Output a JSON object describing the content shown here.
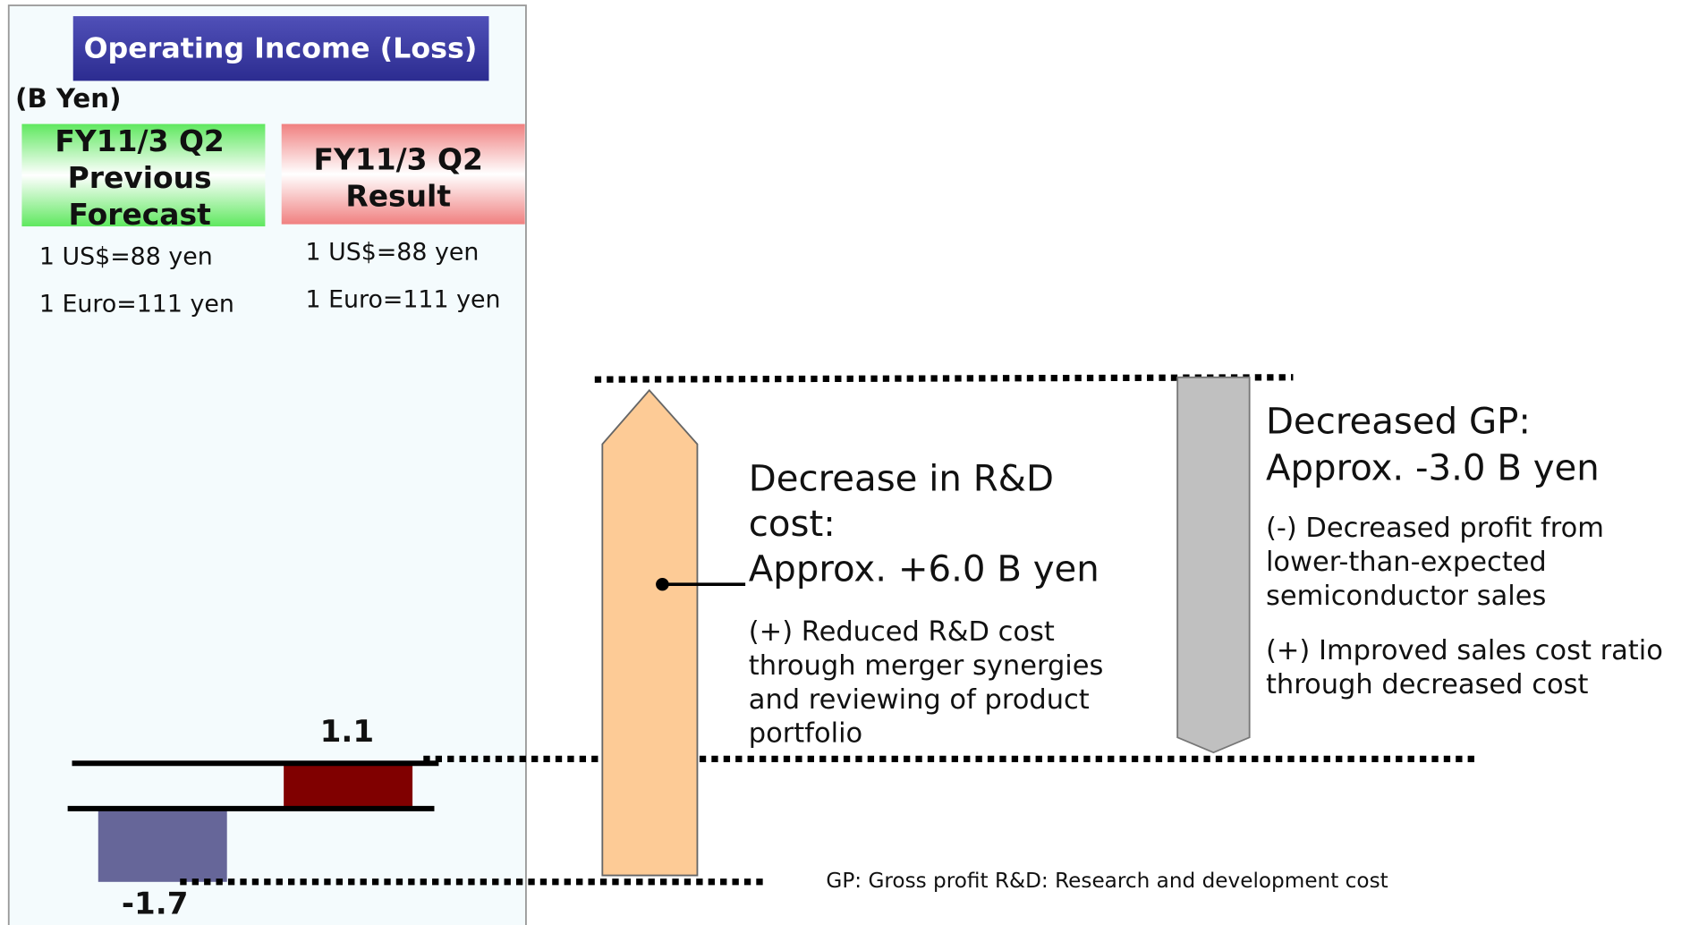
{
  "title": "Operating Income (Loss)",
  "unit": "(B Yen)",
  "columns": [
    {
      "header": [
        "FY11/3 Q2",
        "Previous",
        "Forecast"
      ],
      "rates": [
        "1 US$=88 yen",
        "1 Euro=111 yen"
      ],
      "value_label": "-1.7"
    },
    {
      "header": [
        "FY11/3 Q2",
        "Result"
      ],
      "rates": [
        "1 US$=88 yen",
        "1 Euro=111 yen"
      ],
      "value_label": "1.1"
    }
  ],
  "factors": [
    {
      "heading": [
        "Decrease in R&D",
        "cost:",
        "Approx. +6.0 B yen"
      ],
      "details": [
        [
          "(+) Reduced R&D cost",
          "through merger synergies",
          "and reviewing of product",
          "portfolio"
        ]
      ]
    },
    {
      "heading": [
        "Decreased GP:",
        "Approx. -3.0 B yen"
      ],
      "details": [
        [
          "(-) Decreased profit from",
          "lower-than-expected",
          "semiconductor sales"
        ],
        [
          "(+) Improved sales cost ratio",
          "through decreased cost"
        ]
      ]
    }
  ],
  "footnote": "GP: Gross profit R&D: Research and development cost"
}
